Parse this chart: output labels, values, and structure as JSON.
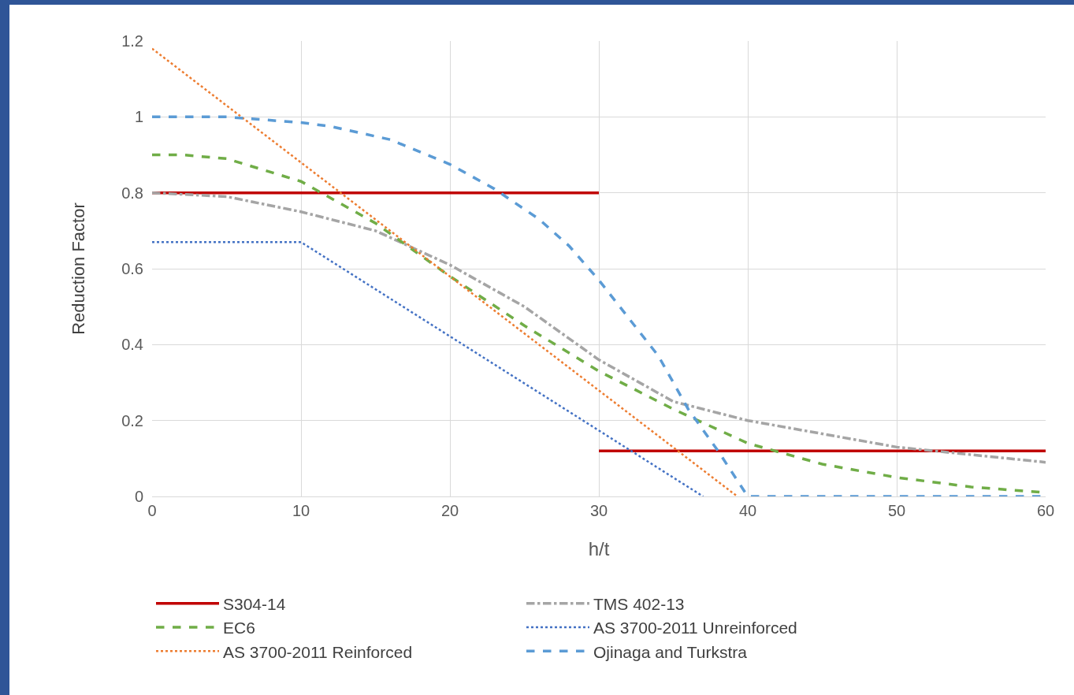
{
  "chart_data": {
    "type": "line",
    "xlabel": "h/t",
    "ylabel": "Reduction Factor",
    "xlim": [
      0,
      60
    ],
    "xticks": [
      0,
      10,
      20,
      30,
      40,
      50,
      60
    ],
    "ylim": [
      0,
      1.2
    ],
    "yticks": [
      0,
      0.2,
      0.4,
      0.6,
      0.8,
      1,
      1.2
    ],
    "grid": true,
    "legend": "bottom",
    "marker": "none",
    "series": [
      {
        "name": "S304-14",
        "color": "#c00000",
        "line_style": "solid",
        "x": [
          0,
          30,
          null,
          30,
          60
        ],
        "values": [
          0.8,
          0.8,
          null,
          0.12,
          0.12
        ]
      },
      {
        "name": "TMS 402-13",
        "color": "#a5a5a5",
        "line_style": "dashdot",
        "x": [
          0,
          5,
          10,
          15,
          20,
          25,
          30,
          35,
          40,
          45,
          50,
          55,
          60
        ],
        "values": [
          0.8,
          0.79,
          0.75,
          0.7,
          0.61,
          0.5,
          0.36,
          0.25,
          0.2,
          0.165,
          0.13,
          0.11,
          0.09
        ]
      },
      {
        "name": "EC6",
        "color": "#70ad47",
        "line_style": "dashed",
        "x": [
          0,
          2,
          5,
          10,
          15,
          20,
          25,
          30,
          35,
          40,
          45,
          50,
          55,
          60
        ],
        "values": [
          0.9,
          0.9,
          0.89,
          0.83,
          0.72,
          0.58,
          0.45,
          0.33,
          0.23,
          0.14,
          0.085,
          0.05,
          0.025,
          0.01
        ]
      },
      {
        "name": "AS 3700-2011 Unreinforced",
        "color": "#4472c4",
        "line_style": "dotted",
        "x": [
          0,
          10,
          37
        ],
        "values": [
          0.67,
          0.67,
          0
        ]
      },
      {
        "name": "AS 3700-2011 Reinforced",
        "color": "#ed7d31",
        "line_style": "dotted",
        "x": [
          0,
          39.3
        ],
        "values": [
          1.18,
          0
        ]
      },
      {
        "name": "Ojinaga and Turkstra",
        "color": "#5b9bd5",
        "line_style": "dashed",
        "x": [
          0,
          5,
          10,
          12,
          16,
          20,
          23,
          26,
          28,
          30,
          32,
          34,
          36,
          38,
          40,
          60
        ],
        "values": [
          1,
          1,
          0.985,
          0.975,
          0.94,
          0.875,
          0.81,
          0.73,
          0.66,
          0.57,
          0.47,
          0.37,
          0.23,
          0.12,
          0,
          0
        ]
      }
    ]
  }
}
